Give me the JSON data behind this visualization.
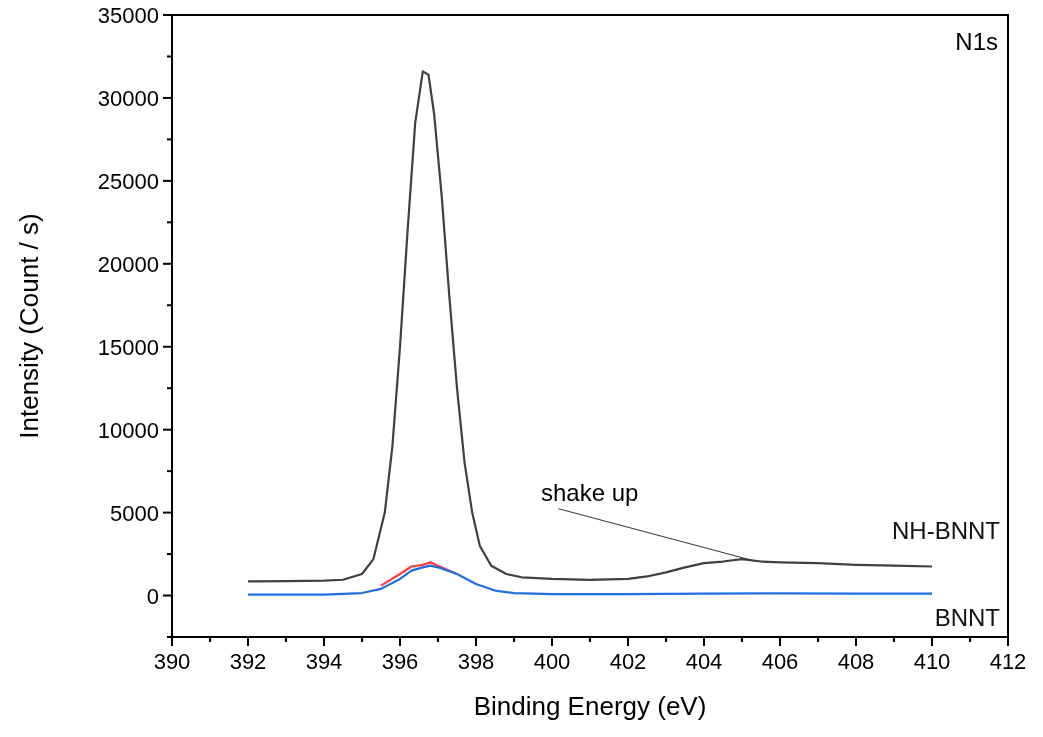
{
  "chart_data": {
    "type": "line",
    "title": "N1s",
    "xlabel": "Binding Energy (eV)",
    "ylabel": "Intensity (Count / s)",
    "xlim": [
      390,
      412
    ],
    "ylim": [
      -2500,
      35000
    ],
    "xticks": [
      390,
      {
        "value": 391,
        "label": null
      },
      392,
      {
        "value": 393,
        "label": null
      },
      394,
      {
        "value": 395,
        "label": null
      },
      396,
      {
        "value": 397,
        "label": null
      },
      398,
      {
        "value": 399,
        "label": null
      },
      400,
      {
        "value": 401,
        "label": null
      },
      402,
      {
        "value": 403,
        "label": null
      },
      404,
      {
        "value": 405,
        "label": null
      },
      406,
      {
        "value": 407,
        "label": null
      },
      408,
      {
        "value": 409,
        "label": null
      },
      410,
      {
        "value": 411,
        "label": null
      },
      412
    ],
    "yticks": [
      {
        "value": -2500,
        "label": null
      },
      0,
      {
        "value": 2500,
        "label": null
      },
      5000,
      {
        "value": 7500,
        "label": null
      },
      10000,
      {
        "value": 12500,
        "label": null
      },
      15000,
      {
        "value": 17500,
        "label": null
      },
      20000,
      {
        "value": 22500,
        "label": null
      },
      25000,
      {
        "value": 27500,
        "label": null
      },
      30000,
      {
        "value": 32500,
        "label": null
      },
      35000
    ],
    "grid": false,
    "line_style": "solid",
    "marker": "none",
    "annotations": [
      {
        "text": "shake up",
        "x": 405.3,
        "y": 2100
      }
    ],
    "series": [
      {
        "name": "NH-BNNT",
        "color": "#404040",
        "x": [
          392,
          393,
          394,
          394.5,
          395,
          395.3,
          395.6,
          395.8,
          396,
          396.2,
          396.4,
          396.6,
          396.75,
          396.9,
          397.1,
          397.3,
          397.5,
          397.7,
          397.9,
          398.1,
          398.4,
          398.8,
          399.2,
          400,
          401,
          402,
          402.5,
          403,
          403.5,
          404,
          404.5,
          405,
          405.5,
          406,
          407,
          408,
          409,
          410
        ],
        "values": [
          850,
          870,
          900,
          950,
          1300,
          2200,
          5000,
          9000,
          15000,
          22000,
          28500,
          31600,
          31400,
          29000,
          24000,
          18000,
          12500,
          8000,
          5000,
          3000,
          1800,
          1300,
          1100,
          1000,
          950,
          1000,
          1150,
          1400,
          1700,
          1950,
          2050,
          2200,
          2050,
          2000,
          1950,
          1850,
          1800,
          1750
        ]
      },
      {
        "color": "#ff3c3c",
        "x": [
          395.5,
          396,
          396.3,
          396.6,
          396.8,
          397,
          397.5
        ],
        "values": [
          600,
          1300,
          1750,
          1850,
          2000,
          1800,
          1300
        ]
      },
      {
        "name": "BNNT",
        "color": "#1f6fe0",
        "x": [
          392,
          394,
          395,
          395.5,
          396,
          396.3,
          396.6,
          396.8,
          397,
          397.5,
          398,
          398.5,
          399,
          400,
          402,
          404,
          406,
          408,
          410
        ],
        "values": [
          50,
          60,
          150,
          400,
          1000,
          1500,
          1700,
          1800,
          1700,
          1300,
          700,
          300,
          150,
          80,
          80,
          110,
          130,
          120,
          110
        ]
      }
    ]
  }
}
